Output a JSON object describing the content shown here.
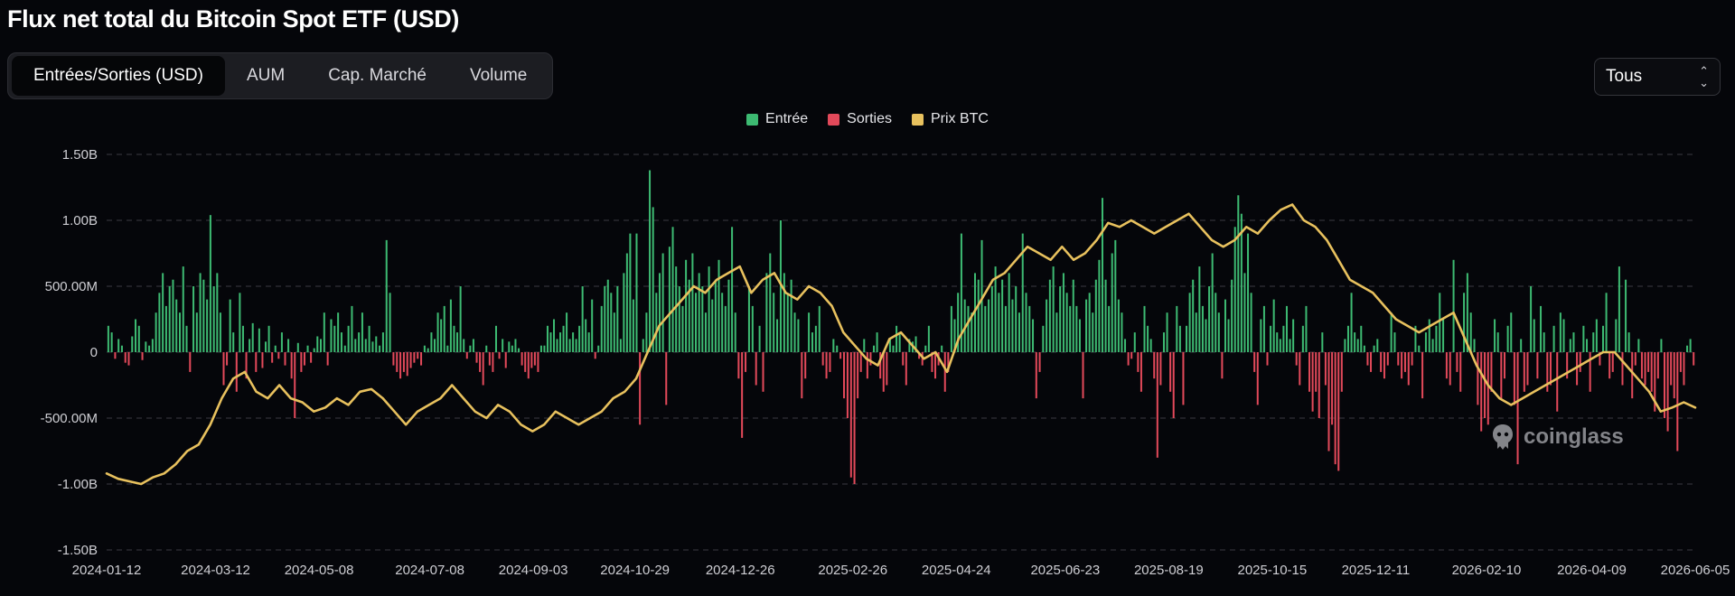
{
  "title": "Flux net total du Bitcoin Spot ETF (USD)",
  "tabs": [
    {
      "label": "Entrées/Sorties (USD)",
      "active": true
    },
    {
      "label": "AUM",
      "active": false
    },
    {
      "label": "Cap. Marché",
      "active": false
    },
    {
      "label": "Volume",
      "active": false
    }
  ],
  "range_select": {
    "value": "Tous"
  },
  "watermark": "coinglass",
  "colors": {
    "inflow": "#3dba72",
    "outflow": "#e2495a",
    "price": "#e8c15e",
    "grid": "#3a3b42"
  },
  "chart_data": {
    "type": "bar",
    "title": "Flux net total du Bitcoin Spot ETF (USD)",
    "legend": [
      "Entrée",
      "Sorties",
      "Prix BTC"
    ],
    "legend_position": "top-center",
    "grid": true,
    "y_ticks": [
      "1.50B",
      "1.00B",
      "500.00M",
      "0",
      "-500.00M",
      "-1.00B",
      "-1.50B"
    ],
    "ylim": [
      -1.5,
      1.5
    ],
    "y_unit": "B USD",
    "x_ticks": [
      "2024-01-12",
      "2024-03-12",
      "2024-05-08",
      "2024-07-08",
      "2024-09-03",
      "2024-10-29",
      "2024-12-26",
      "2025-02-26",
      "2025-04-24",
      "2025-06-23",
      "2025-08-19",
      "2025-10-15",
      "2025-12-11",
      "2026-02-10",
      "2026-04-09",
      "2026-06-05"
    ],
    "flows_segments": [
      {
        "from": "2024-01-12",
        "to": "2024-03-12",
        "net_flows_billion": [
          0.2,
          0.15,
          -0.05,
          0.1,
          0.05,
          -0.08,
          -0.1,
          0.12,
          0.25,
          0.2,
          -0.06,
          0.08,
          0.05,
          0.1,
          0.3,
          0.45,
          0.6,
          0.35,
          0.5,
          0.55,
          0.4,
          0.3,
          0.65,
          0.2,
          -0.15,
          0.5,
          0.3,
          0.6,
          0.55,
          0.4,
          1.04,
          0.5
        ]
      },
      {
        "from": "2024-03-12",
        "to": "2024-05-08",
        "net_flows_billion": [
          0.6,
          0.3,
          -0.25,
          -0.1,
          0.4,
          0.15,
          -0.3,
          0.45,
          0.2,
          -0.2,
          0.1,
          0.22,
          -0.15,
          0.18,
          -0.12,
          0.08,
          0.2,
          -0.08,
          0.05,
          -0.05,
          0.15,
          -0.1,
          0.1,
          -0.2,
          -0.5,
          0.07,
          -0.15,
          -0.1,
          0.05,
          -0.08,
          0.03,
          0.12
        ]
      },
      {
        "from": "2024-05-08",
        "to": "2024-07-08",
        "net_flows_billion": [
          0.1,
          0.3,
          -0.1,
          0.25,
          0.2,
          0.3,
          0.15,
          0.05,
          0.2,
          0.35,
          0.1,
          0.15,
          0.3,
          0.1,
          0.2,
          0.08,
          0.12,
          0.05,
          0.15,
          0.85,
          0.45,
          -0.1,
          -0.15,
          -0.2,
          -0.15,
          -0.18,
          -0.12,
          -0.08,
          -0.05,
          -0.1,
          0.05,
          0.03
        ]
      },
      {
        "from": "2024-07-08",
        "to": "2024-09-03",
        "net_flows_billion": [
          0.15,
          0.1,
          0.3,
          0.25,
          0.35,
          0.05,
          0.4,
          0.2,
          0.15,
          0.5,
          0.1,
          -0.05,
          0.05,
          0.1,
          -0.08,
          -0.15,
          -0.25,
          0.05,
          -0.1,
          -0.15,
          0.2,
          -0.05,
          0.1,
          -0.12,
          0.08,
          0.05,
          0.1,
          0.03,
          -0.1,
          -0.15,
          -0.2,
          -0.12
        ]
      },
      {
        "from": "2024-09-03",
        "to": "2024-10-29",
        "net_flows_billion": [
          -0.1,
          -0.15,
          0.05,
          0.05,
          0.2,
          0.15,
          0.25,
          0.1,
          0.15,
          0.2,
          0.3,
          0.1,
          0.15,
          0.1,
          0.2,
          0.5,
          0.25,
          0.15,
          0.4,
          -0.05,
          0.05,
          0.35,
          0.5,
          0.55,
          0.45,
          0.3,
          0.5,
          0.1,
          0.6,
          0.75,
          0.9,
          0.4
        ]
      },
      {
        "from": "2024-10-29",
        "to": "2024-12-26",
        "net_flows_billion": [
          0.9,
          -0.55,
          0.1,
          0.3,
          1.38,
          1.1,
          0.45,
          0.6,
          0.75,
          -0.4,
          0.8,
          0.95,
          0.65,
          0.5,
          0.35,
          0.7,
          0.55,
          0.75,
          0.45,
          0.6,
          0.5,
          0.3,
          0.65,
          0.4,
          0.55,
          0.7,
          0.45,
          0.35,
          0.55,
          0.95,
          0.3,
          -0.2
        ]
      },
      {
        "from": "2024-12-26",
        "to": "2025-02-26",
        "net_flows_billion": [
          -0.65,
          -0.15,
          0.5,
          0.35,
          -0.25,
          0.2,
          -0.3,
          0.6,
          0.75,
          0.45,
          0.25,
          1.0,
          0.6,
          0.45,
          0.55,
          0.3,
          0.25,
          -0.35,
          -0.2,
          0.3,
          0.15,
          0.2,
          0.35,
          -0.1,
          -0.2,
          -0.15,
          0.1,
          0.05,
          -0.05,
          -0.35,
          -0.5,
          -0.95
        ]
      },
      {
        "from": "2025-02-26",
        "to": "2025-04-24",
        "net_flows_billion": [
          -1.0,
          -0.35,
          -0.15,
          0.1,
          -0.2,
          -0.1,
          0.05,
          0.15,
          -0.2,
          -0.3,
          -0.25,
          0.1,
          0.05,
          0.2,
          0.15,
          -0.1,
          -0.25,
          0.1,
          0.08,
          0.12,
          -0.05,
          -0.1,
          0.05,
          0.2,
          -0.15,
          -0.2,
          -0.1,
          0.05,
          -0.3,
          -0.15,
          0.35,
          0.25
        ]
      },
      {
        "from": "2025-04-24",
        "to": "2025-06-23",
        "net_flows_billion": [
          0.45,
          0.9,
          0.4,
          0.35,
          0.3,
          0.6,
          0.55,
          0.85,
          0.35,
          0.4,
          0.5,
          0.65,
          0.45,
          0.55,
          0.35,
          0.6,
          0.4,
          0.5,
          0.3,
          0.9,
          0.45,
          0.35,
          0.25,
          -0.35,
          -0.15,
          0.2,
          0.4,
          0.55,
          0.65,
          0.3,
          0.5,
          0.6
        ]
      },
      {
        "from": "2025-06-23",
        "to": "2025-08-19",
        "net_flows_billion": [
          0.45,
          0.35,
          0.55,
          0.35,
          0.25,
          -0.35,
          0.4,
          0.45,
          0.3,
          0.55,
          0.7,
          1.17,
          0.55,
          0.35,
          0.75,
          0.85,
          0.4,
          0.3,
          0.1,
          -0.1,
          -0.05,
          0.15,
          -0.15,
          -0.3,
          0.35,
          0.2,
          0.1,
          -0.2,
          -0.8,
          -0.25,
          0.15,
          0.3
        ]
      },
      {
        "from": "2025-08-19",
        "to": "2025-10-15",
        "net_flows_billion": [
          -0.3,
          -0.5,
          0.35,
          0.2,
          -0.4,
          0.2,
          0.45,
          0.55,
          0.3,
          0.65,
          0.35,
          0.25,
          0.5,
          0.75,
          0.45,
          0.3,
          -0.2,
          0.4,
          0.25,
          0.55,
          0.95,
          1.19,
          1.05,
          0.6,
          0.9,
          0.45,
          -0.15,
          -0.4,
          0.25,
          0.35,
          -0.1,
          0.2
        ]
      },
      {
        "from": "2025-10-15",
        "to": "2025-12-11",
        "net_flows_billion": [
          0.4,
          0.15,
          0.1,
          0.2,
          0.35,
          0.1,
          0.25,
          -0.1,
          -0.25,
          0.2,
          0.35,
          -0.3,
          -0.45,
          -0.3,
          -0.5,
          0.15,
          -0.25,
          -0.75,
          -0.55,
          -0.85,
          -0.9,
          -0.3,
          0.1,
          0.2,
          0.45,
          0.15,
          0.1,
          0.2,
          0.05,
          -0.1,
          -0.15,
          0.05
        ]
      },
      {
        "from": "2025-12-11",
        "to": "2026-02-10",
        "net_flows_billion": [
          0.1,
          -0.15,
          -0.2,
          -0.1,
          0.3,
          0.15,
          -0.1,
          -0.2,
          -0.15,
          -0.25,
          -0.1,
          0.2,
          0.05,
          -0.35,
          0.15,
          0.25,
          0.1,
          0.2,
          0.45,
          0.25,
          -0.2,
          -0.25,
          0.7,
          -0.15,
          -0.3,
          0.45,
          0.6,
          0.3,
          0.1,
          -0.4,
          -0.6,
          -0.5
        ]
      },
      {
        "from": "2026-02-10",
        "to": "2026-04-09",
        "net_flows_billion": [
          -0.55,
          -0.3,
          0.25,
          0.15,
          -0.35,
          -0.2,
          0.2,
          0.3,
          -0.4,
          -0.85,
          0.1,
          -0.3,
          -0.25,
          0.5,
          0.25,
          -0.2,
          0.35,
          0.15,
          -0.3,
          -0.25,
          0.2,
          -0.45,
          0.3,
          0.25,
          -0.2,
          0.1,
          0.15,
          -0.25,
          -0.15,
          0.2,
          0.1,
          -0.3
        ]
      },
      {
        "from": "2026-04-09",
        "to": "2026-06-05",
        "net_flows_billion": [
          0.15,
          0.25,
          -0.1,
          0.2,
          0.45,
          -0.2,
          -0.15,
          0.25,
          0.65,
          -0.25,
          0.55,
          0.15,
          -0.35,
          -0.1,
          0.1,
          -0.2,
          -0.25,
          -0.15,
          -0.3,
          -0.45,
          -0.2,
          0.1,
          -0.5,
          -0.6,
          -0.25,
          -0.35,
          -0.75,
          -0.15,
          -0.25,
          0.05,
          0.1,
          -0.1
        ]
      }
    ],
    "btc_price_on_flow_axis": [
      -0.92,
      -0.96,
      -0.98,
      -1.0,
      -0.95,
      -0.92,
      -0.85,
      -0.75,
      -0.7,
      -0.55,
      -0.35,
      -0.2,
      -0.15,
      -0.3,
      -0.35,
      -0.25,
      -0.35,
      -0.38,
      -0.45,
      -0.42,
      -0.35,
      -0.4,
      -0.3,
      -0.28,
      -0.35,
      -0.45,
      -0.55,
      -0.45,
      -0.4,
      -0.35,
      -0.25,
      -0.35,
      -0.45,
      -0.5,
      -0.4,
      -0.45,
      -0.55,
      -0.6,
      -0.55,
      -0.45,
      -0.5,
      -0.55,
      -0.5,
      -0.45,
      -0.35,
      -0.3,
      -0.2,
      0.0,
      0.2,
      0.3,
      0.4,
      0.5,
      0.45,
      0.55,
      0.6,
      0.65,
      0.45,
      0.55,
      0.6,
      0.45,
      0.4,
      0.5,
      0.45,
      0.35,
      0.15,
      0.05,
      -0.05,
      -0.1,
      0.1,
      0.15,
      0.05,
      -0.05,
      0.0,
      -0.15,
      0.1,
      0.25,
      0.4,
      0.55,
      0.6,
      0.7,
      0.8,
      0.75,
      0.7,
      0.8,
      0.7,
      0.75,
      0.85,
      0.98,
      0.95,
      1.0,
      0.95,
      0.9,
      0.95,
      1.0,
      1.05,
      0.95,
      0.85,
      0.8,
      0.85,
      0.95,
      0.9,
      1.0,
      1.08,
      1.12,
      1.0,
      0.95,
      0.85,
      0.7,
      0.55,
      0.5,
      0.45,
      0.35,
      0.25,
      0.2,
      0.15,
      0.2,
      0.25,
      0.3,
      0.1,
      -0.1,
      -0.25,
      -0.35,
      -0.4,
      -0.35,
      -0.3,
      -0.25,
      -0.2,
      -0.15,
      -0.1,
      -0.05,
      0.0,
      0.0,
      -0.1,
      -0.2,
      -0.3,
      -0.45,
      -0.42,
      -0.38,
      -0.42
    ],
    "btc_price_range": {
      "from": "2024-01-12",
      "to": "2026-06-05"
    }
  }
}
